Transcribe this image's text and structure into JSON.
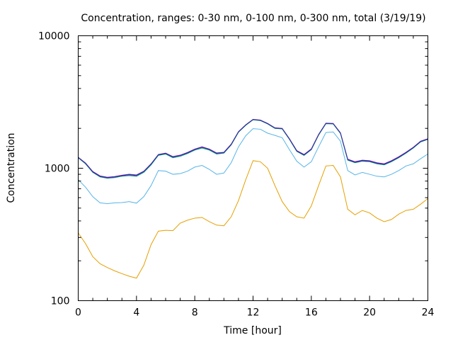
{
  "chart_data": {
    "type": "line",
    "title": "Concentration, ranges: 0-30 nm, 0-100 nm, 0-300 nm, total (3/19/19)",
    "xlabel": "Time [hour]",
    "ylabel": "Concentration",
    "xlim": [
      0,
      24
    ],
    "ylim": [
      100,
      10000
    ],
    "yscale": "log",
    "x_ticks": [
      0,
      4,
      8,
      12,
      16,
      20,
      24
    ],
    "x_tick_labels": [
      "0",
      "4",
      "8",
      "12",
      "16",
      "20",
      "24"
    ],
    "y_ticks": [
      100,
      1000,
      10000
    ],
    "y_tick_labels": [
      "100",
      "1000",
      "10000"
    ],
    "grid": false,
    "legend": "none",
    "x": [
      0,
      0.5,
      1,
      1.5,
      2,
      2.5,
      3,
      3.5,
      4,
      4.5,
      5,
      5.5,
      6,
      6.5,
      7,
      7.5,
      8,
      8.5,
      9,
      9.5,
      10,
      10.5,
      11,
      11.5,
      12,
      12.5,
      13,
      13.5,
      14,
      14.5,
      15,
      15.5,
      16,
      16.5,
      17,
      17.5,
      18,
      18.5,
      19,
      19.5,
      20,
      20.5,
      21,
      21.5,
      22,
      22.5,
      23,
      23.5,
      24
    ],
    "series": [
      {
        "color": "#e69f00",
        "values": [
          325,
          270,
          215,
          190,
          178,
          168,
          160,
          153,
          148,
          185,
          265,
          335,
          340,
          338,
          385,
          405,
          420,
          425,
          395,
          372,
          368,
          430,
          570,
          820,
          1140,
          1120,
          1000,
          740,
          560,
          470,
          430,
          420,
          520,
          740,
          1040,
          1050,
          860,
          490,
          445,
          480,
          460,
          420,
          395,
          410,
          450,
          480,
          490,
          535,
          590
        ]
      },
      {
        "color": "#56b4e9",
        "values": [
          820,
          720,
          610,
          548,
          540,
          548,
          550,
          560,
          545,
          610,
          740,
          960,
          950,
          900,
          910,
          950,
          1020,
          1050,
          980,
          900,
          920,
          1100,
          1450,
          1760,
          1990,
          1970,
          1840,
          1770,
          1700,
          1380,
          1130,
          1020,
          1120,
          1450,
          1860,
          1880,
          1600,
          960,
          890,
          930,
          900,
          870,
          860,
          900,
          960,
          1040,
          1080,
          1180,
          1280
        ]
      },
      {
        "color": "#009e73",
        "values": [
          1200,
          1080,
          930,
          860,
          840,
          850,
          870,
          880,
          870,
          930,
          1060,
          1250,
          1280,
          1200,
          1230,
          1290,
          1370,
          1420,
          1370,
          1280,
          1300,
          1500,
          1870,
          2110,
          2320,
          2290,
          2160,
          2000,
          1980,
          1650,
          1340,
          1250,
          1380,
          1780,
          2170,
          2160,
          1830,
          1150,
          1100,
          1130,
          1120,
          1080,
          1060,
          1120,
          1200,
          1300,
          1420,
          1580,
          1650
        ]
      },
      {
        "color": "#9400d3",
        "values": [
          1210,
          1095,
          945,
          875,
          855,
          865,
          885,
          900,
          890,
          950,
          1080,
          1270,
          1300,
          1225,
          1255,
          1315,
          1395,
          1450,
          1395,
          1305,
          1320,
          1520,
          1890,
          2130,
          2340,
          2310,
          2180,
          2020,
          2000,
          1670,
          1360,
          1270,
          1400,
          1800,
          2190,
          2180,
          1850,
          1170,
          1120,
          1150,
          1140,
          1100,
          1080,
          1140,
          1220,
          1320,
          1440,
          1600,
          1670
        ]
      },
      {
        "color": "#1f3a93",
        "values": [
          1205,
          1088,
          938,
          868,
          848,
          858,
          878,
          892,
          882,
          942,
          1072,
          1262,
          1292,
          1215,
          1245,
          1305,
          1385,
          1440,
          1385,
          1295,
          1310,
          1510,
          1880,
          2120,
          2330,
          2300,
          2170,
          2010,
          1990,
          1660,
          1350,
          1260,
          1390,
          1790,
          2180,
          2170,
          1840,
          1160,
          1110,
          1140,
          1130,
          1090,
          1070,
          1130,
          1210,
          1310,
          1430,
          1590,
          1660
        ]
      }
    ]
  }
}
